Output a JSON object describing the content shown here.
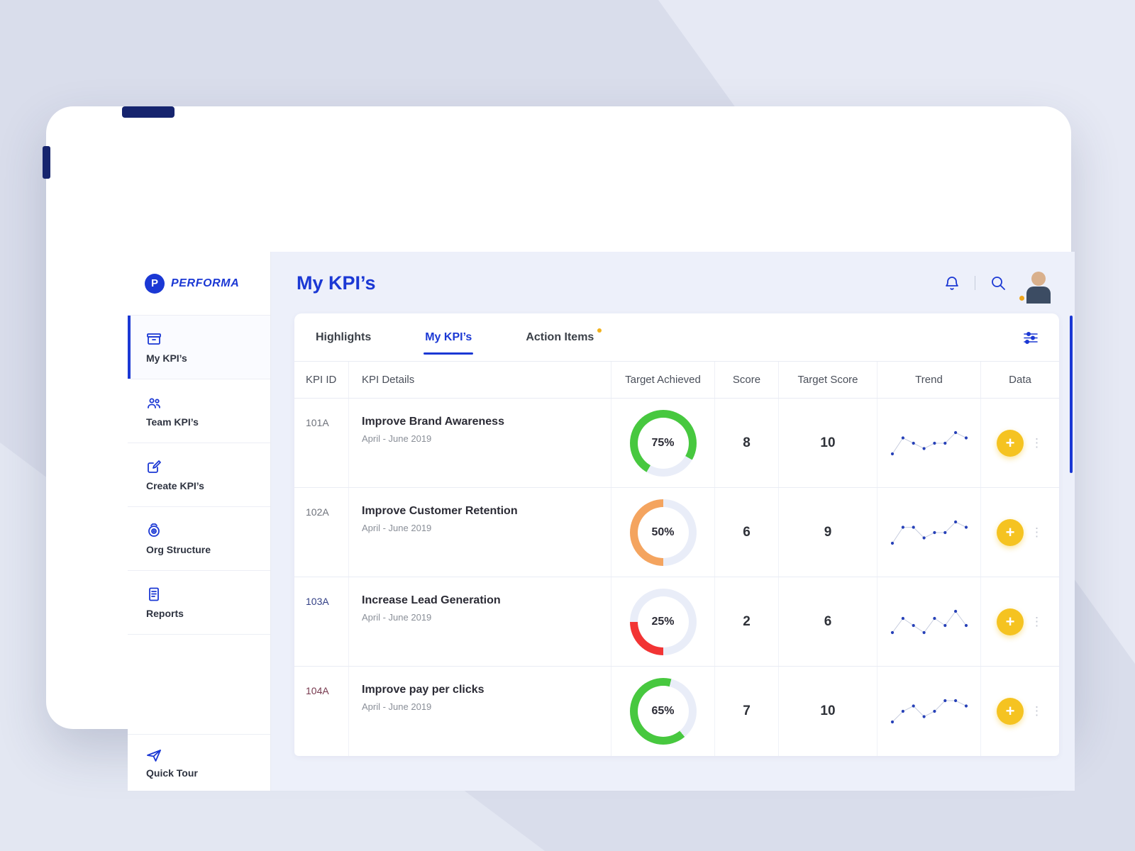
{
  "colors": {
    "accent": "#1b38d4",
    "green": "#47c83f",
    "orange": "#f4a45f",
    "red": "#f23434",
    "yellow": "#f5c321",
    "track": "#e9edf8",
    "spark_dot": "#2741b8",
    "spark_line": "#c7cdde"
  },
  "brand": {
    "name": "PERFORMA",
    "logo_letter": "P"
  },
  "icons": {
    "plus": "+",
    "kebab": "⋮"
  },
  "sidebar": {
    "items": [
      {
        "label": "My KPI’s",
        "icon": "kpi-archive-icon",
        "active": true
      },
      {
        "label": "Team KPI’s",
        "icon": "team-icon",
        "active": false
      },
      {
        "label": "Create KPI’s",
        "icon": "create-edit-icon",
        "active": false
      },
      {
        "label": "Org Structure",
        "icon": "org-target-icon",
        "active": false
      },
      {
        "label": "Reports",
        "icon": "reports-doc-icon",
        "active": false
      }
    ],
    "quick_tour_label": "Quick Tour"
  },
  "header": {
    "title": "My KPI’s"
  },
  "tabs": {
    "items": [
      {
        "label": "Highlights",
        "active": false,
        "badge": false
      },
      {
        "label": "My KPI’s",
        "active": true,
        "badge": false
      },
      {
        "label": "Action Items",
        "active": false,
        "badge": true
      }
    ]
  },
  "table": {
    "columns": [
      "KPI ID",
      "KPI Details",
      "Target Achieved",
      "Score",
      "Target Score",
      "Trend",
      "Data"
    ],
    "rows": [
      {
        "id": "101A",
        "id_color": "#6e727b",
        "title": "Improve Brand Awareness",
        "period": "April - June 2019",
        "percent": 75,
        "percent_label": "75%",
        "ring_color": "#47c83f",
        "ring_from": 210,
        "score": "8",
        "target": "10",
        "trend": [
          2,
          5,
          4,
          3,
          4,
          4,
          6,
          5
        ]
      },
      {
        "id": "102A",
        "id_color": "#6e727b",
        "title": "Improve Customer Retention",
        "period": "April - June 2019",
        "percent": 50,
        "percent_label": "50%",
        "ring_color": "#f4a45f",
        "ring_from": 180,
        "score": "6",
        "target": "9",
        "trend": [
          2,
          5,
          5,
          3,
          4,
          4,
          6,
          5
        ]
      },
      {
        "id": "103A",
        "id_color": "#323f85",
        "title": "Increase Lead Generation",
        "period": "April - June 2019",
        "percent": 25,
        "percent_label": "25%",
        "ring_color": "#f23434",
        "ring_from": 180,
        "score": "2",
        "target": "6",
        "trend": [
          3,
          5,
          4,
          3,
          5,
          4,
          6,
          4
        ]
      },
      {
        "id": "104A",
        "id_color": "#77394e",
        "title": "Improve pay per clicks",
        "period": "April - June 2019",
        "percent": 65,
        "percent_label": "65%",
        "ring_color": "#47c83f",
        "ring_from": 140,
        "score": "7",
        "target": "10",
        "trend": [
          2,
          4,
          5,
          3,
          4,
          6,
          6,
          5
        ]
      }
    ]
  }
}
